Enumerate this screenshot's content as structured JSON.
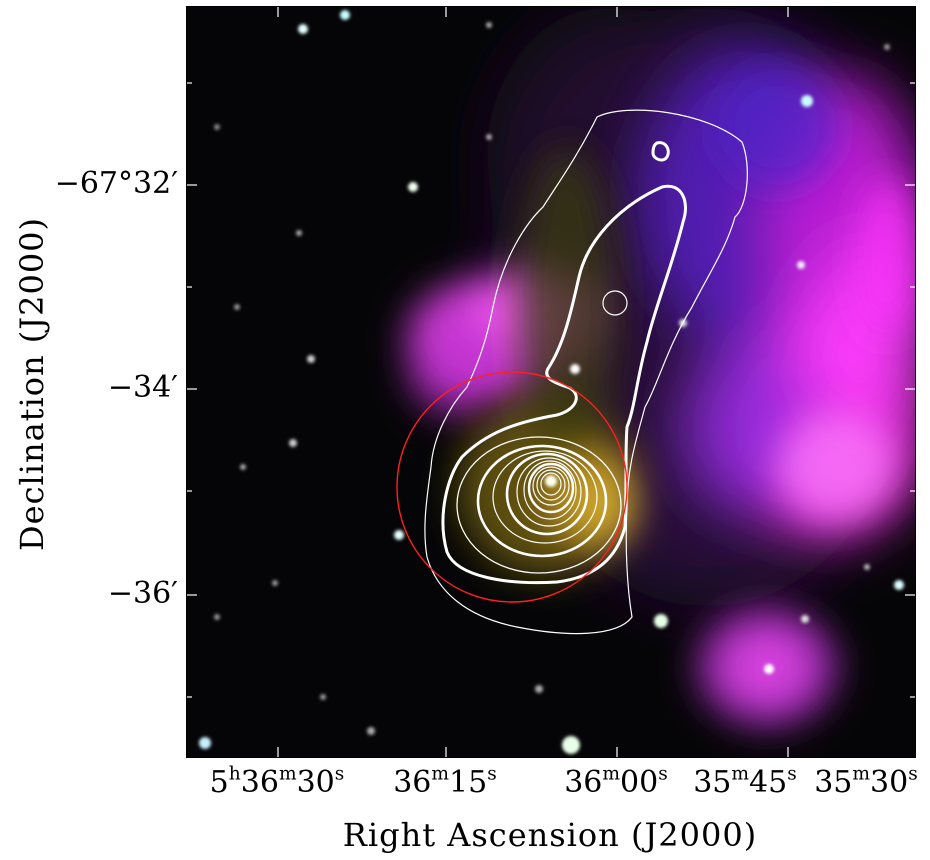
{
  "figure": {
    "x_axis_title": "Right Ascension (J2000)",
    "y_axis_title": "Declination (J2000)",
    "x_tick_labels": [
      {
        "h": "5",
        "h_unit": "h",
        "m": "36",
        "m_unit": "m",
        "s": "30",
        "s_unit": "s"
      },
      {
        "h": "",
        "h_unit": "",
        "m": "36",
        "m_unit": "m",
        "s": "15",
        "s_unit": "s"
      },
      {
        "h": "",
        "h_unit": "",
        "m": "36",
        "m_unit": "m",
        "s": "00",
        "s_unit": "s"
      },
      {
        "h": "",
        "h_unit": "",
        "m": "35",
        "m_unit": "m",
        "s": "45",
        "s_unit": "s"
      },
      {
        "h": "",
        "h_unit": "",
        "m": "35",
        "m_unit": "m",
        "s": "30",
        "s_unit": "s"
      }
    ],
    "y_tick_labels": [
      "−67°32′",
      "−34′",
      "−36′"
    ],
    "colors": {
      "contour": "#ffffff",
      "circle": "#ff2020",
      "emission_magenta": "#ff33ff",
      "emission_purple": "#6a1fd0",
      "emission_yellow": "#ccaa33",
      "background": "#000000"
    }
  }
}
